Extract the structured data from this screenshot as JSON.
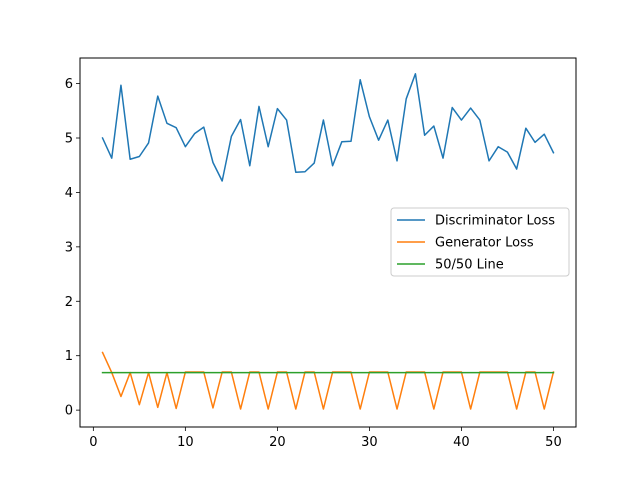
{
  "chart_data": {
    "type": "line",
    "title": "",
    "xlabel": "",
    "ylabel": "",
    "xlim": [
      -1.45,
      52.45
    ],
    "ylim": [
      -0.31,
      6.47
    ],
    "xticks": [
      0,
      10,
      20,
      30,
      40,
      50
    ],
    "yticks": [
      0,
      1,
      2,
      3,
      4,
      5,
      6
    ],
    "grid": false,
    "legend_position": "center-right",
    "x": [
      1,
      2,
      3,
      4,
      5,
      6,
      7,
      8,
      9,
      10,
      11,
      12,
      13,
      14,
      15,
      16,
      17,
      18,
      19,
      20,
      21,
      22,
      23,
      24,
      25,
      26,
      27,
      28,
      29,
      30,
      31,
      32,
      33,
      34,
      35,
      36,
      37,
      38,
      39,
      40,
      41,
      42,
      43,
      44,
      45,
      46,
      47,
      48,
      49,
      50
    ],
    "series": [
      {
        "name": "Discriminator Loss",
        "color": "#1f77b4",
        "values": [
          5.0,
          4.63,
          5.97,
          4.61,
          4.66,
          4.91,
          5.77,
          5.27,
          5.19,
          4.84,
          5.08,
          5.2,
          4.55,
          4.21,
          5.03,
          5.34,
          4.49,
          5.58,
          4.84,
          5.54,
          5.33,
          4.37,
          4.38,
          4.54,
          5.33,
          4.49,
          4.93,
          4.94,
          6.07,
          5.39,
          4.96,
          5.33,
          4.58,
          5.72,
          6.18,
          5.05,
          5.22,
          4.63,
          5.56,
          5.33,
          5.55,
          5.33,
          4.58,
          4.84,
          4.74,
          4.43,
          5.18,
          4.92,
          5.07,
          4.73
        ]
      },
      {
        "name": "Generator Loss",
        "color": "#ff7f0e",
        "values": [
          1.06,
          0.69,
          0.25,
          0.69,
          0.1,
          0.69,
          0.05,
          0.69,
          0.03,
          0.7,
          0.7,
          0.7,
          0.04,
          0.7,
          0.7,
          0.02,
          0.7,
          0.7,
          0.02,
          0.7,
          0.7,
          0.02,
          0.7,
          0.7,
          0.02,
          0.7,
          0.7,
          0.7,
          0.02,
          0.7,
          0.7,
          0.7,
          0.02,
          0.7,
          0.7,
          0.7,
          0.02,
          0.7,
          0.7,
          0.7,
          0.02,
          0.7,
          0.7,
          0.7,
          0.7,
          0.02,
          0.7,
          0.7,
          0.02,
          0.7
        ]
      },
      {
        "name": "50/50 Line",
        "color": "#2ca02c",
        "values": [
          0.69,
          0.69,
          0.69,
          0.69,
          0.69,
          0.69,
          0.69,
          0.69,
          0.69,
          0.69,
          0.69,
          0.69,
          0.69,
          0.69,
          0.69,
          0.69,
          0.69,
          0.69,
          0.69,
          0.69,
          0.69,
          0.69,
          0.69,
          0.69,
          0.69,
          0.69,
          0.69,
          0.69,
          0.69,
          0.69,
          0.69,
          0.69,
          0.69,
          0.69,
          0.69,
          0.69,
          0.69,
          0.69,
          0.69,
          0.69,
          0.69,
          0.69,
          0.69,
          0.69,
          0.69,
          0.69,
          0.69,
          0.69,
          0.69,
          0.69
        ]
      }
    ]
  }
}
